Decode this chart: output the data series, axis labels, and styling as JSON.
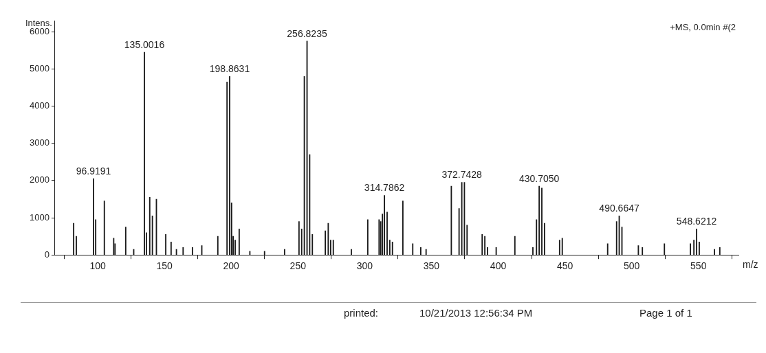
{
  "chart_data": {
    "type": "bar",
    "ylabel": "Intens.",
    "xlabel": "m/z",
    "x": [
      82,
      84,
      96.9191,
      98.5,
      105,
      112,
      113,
      121,
      127,
      135.0016,
      136.5,
      139,
      141,
      144,
      151,
      155,
      159,
      164,
      171,
      178,
      190,
      196.9,
      198.8631,
      200.3,
      201.5,
      203,
      206,
      214,
      225,
      240,
      250.8,
      252.8,
      254.8,
      256.8235,
      258.8,
      260.8,
      270.5,
      272.7,
      274.5,
      276.5,
      290,
      302.3,
      310.8,
      312,
      313.3,
      314.7862,
      316.8,
      318.8,
      320.8,
      328.6,
      336,
      342,
      346,
      364.9,
      370.7,
      372.7428,
      374.7,
      376.7,
      388,
      390,
      392,
      398.5,
      412.5,
      426,
      428.7,
      430.705,
      432.7,
      434.7,
      446,
      448,
      482,
      488.7,
      490.6647,
      492.7,
      505,
      508,
      524.5,
      544,
      546.6,
      548.6212,
      550.6,
      562,
      566
    ],
    "series": [
      {
        "color": "#1a1a1a",
        "values": [
          850,
          500,
          2050,
          950,
          1450,
          450,
          300,
          750,
          150,
          5450,
          600,
          1550,
          1050,
          1500,
          550,
          350,
          150,
          200,
          200,
          250,
          500,
          4650,
          4800,
          1400,
          500,
          400,
          700,
          100,
          100,
          150,
          900,
          700,
          4800,
          5750,
          2700,
          550,
          650,
          850,
          400,
          400,
          150,
          950,
          950,
          900,
          1100,
          1600,
          1150,
          400,
          350,
          1450,
          300,
          200,
          150,
          1850,
          1250,
          1950,
          1950,
          800,
          550,
          500,
          200,
          200,
          500,
          200,
          950,
          1850,
          1800,
          850,
          400,
          450,
          300,
          900,
          1050,
          750,
          250,
          200,
          300,
          300,
          400,
          700,
          350,
          150,
          200
        ]
      }
    ],
    "xlim": [
      68,
      580
    ],
    "xticks": [
      100,
      150,
      200,
      250,
      300,
      350,
      400,
      450,
      500,
      550
    ],
    "ylim": [
      0,
      6300
    ],
    "yticks": [
      0,
      1000,
      2000,
      3000,
      4000,
      5000,
      6000
    ],
    "grid": false,
    "legend": false,
    "annotations": [
      {
        "text": "96.9191",
        "x": 96.9191,
        "y": 2050
      },
      {
        "text": "135.0016",
        "x": 135.0016,
        "y": 5450
      },
      {
        "text": "198.8631",
        "x": 198.8631,
        "y": 4800
      },
      {
        "text": "256.8235",
        "x": 256.8235,
        "y": 5750
      },
      {
        "text": "314.7862",
        "x": 314.7862,
        "y": 1600
      },
      {
        "text": "372.7428",
        "x": 372.7428,
        "y": 1950
      },
      {
        "text": "430.7050",
        "x": 430.705,
        "y": 1850
      },
      {
        "text": "490.6647",
        "x": 490.6647,
        "y": 1050
      },
      {
        "text": "548.6212",
        "x": 548.6212,
        "y": 700
      },
      "+MS, 0.0min #(2",
      "printed:",
      "10/21/2013 12:56:34 PM",
      "Page 1 of 1"
    ]
  }
}
